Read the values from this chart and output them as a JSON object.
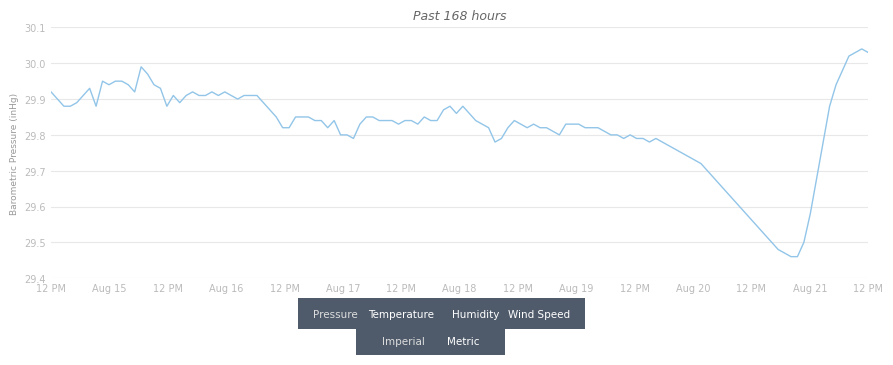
{
  "title": "Past 168 hours",
  "ylabel": "Barometric Pressure (inHg)",
  "ylim": [
    29.4,
    30.1
  ],
  "yticks": [
    29.4,
    29.5,
    29.6,
    29.7,
    29.8,
    29.9,
    30.0,
    30.1
  ],
  "xtick_labels": [
    "12 PM",
    "Aug 15",
    "12 PM",
    "Aug 16",
    "12 PM",
    "Aug 17",
    "12 PM",
    "Aug 18",
    "12 PM",
    "Aug 19",
    "12 PM",
    "Aug 20",
    "12 PM",
    "Aug 21",
    "12 PM"
  ],
  "line_color": "#92c5e8",
  "bg_color": "#ffffff",
  "grid_color": "#e8e8e8",
  "title_color": "#666666",
  "axis_label_color": "#999999",
  "tick_label_color": "#bbbbbb",
  "legend_bg": "#4f5b6b",
  "legend_text_color": "#ffffff",
  "legend_items": [
    "Pressure",
    "Temperature",
    "Humidity",
    "Wind Speed"
  ],
  "btn_items": [
    "Imperial",
    "Metric"
  ],
  "btn_bg": "#4f5b6b",
  "btn_text_color": "#ffffff",
  "pressure_data": [
    29.92,
    29.9,
    29.88,
    29.88,
    29.89,
    29.91,
    29.93,
    29.88,
    29.95,
    29.94,
    29.95,
    29.95,
    29.94,
    29.92,
    29.99,
    29.97,
    29.94,
    29.93,
    29.88,
    29.91,
    29.89,
    29.91,
    29.92,
    29.91,
    29.91,
    29.92,
    29.91,
    29.92,
    29.91,
    29.9,
    29.91,
    29.91,
    29.91,
    29.89,
    29.87,
    29.85,
    29.82,
    29.82,
    29.85,
    29.85,
    29.85,
    29.84,
    29.84,
    29.82,
    29.84,
    29.8,
    29.8,
    29.79,
    29.83,
    29.85,
    29.85,
    29.84,
    29.84,
    29.84,
    29.83,
    29.84,
    29.84,
    29.83,
    29.85,
    29.84,
    29.84,
    29.87,
    29.88,
    29.86,
    29.88,
    29.86,
    29.84,
    29.83,
    29.82,
    29.78,
    29.79,
    29.82,
    29.84,
    29.83,
    29.82,
    29.83,
    29.82,
    29.82,
    29.81,
    29.8,
    29.83,
    29.83,
    29.83,
    29.82,
    29.82,
    29.82,
    29.81,
    29.8,
    29.8,
    29.79,
    29.8,
    29.79,
    29.79,
    29.78,
    29.79,
    29.78,
    29.77,
    29.76,
    29.75,
    29.74,
    29.73,
    29.72,
    29.7,
    29.68,
    29.66,
    29.64,
    29.62,
    29.6,
    29.58,
    29.56,
    29.54,
    29.52,
    29.5,
    29.48,
    29.47,
    29.46,
    29.46,
    29.5,
    29.58,
    29.68,
    29.78,
    29.88,
    29.94,
    29.98,
    30.02,
    30.03,
    30.04,
    30.03
  ]
}
